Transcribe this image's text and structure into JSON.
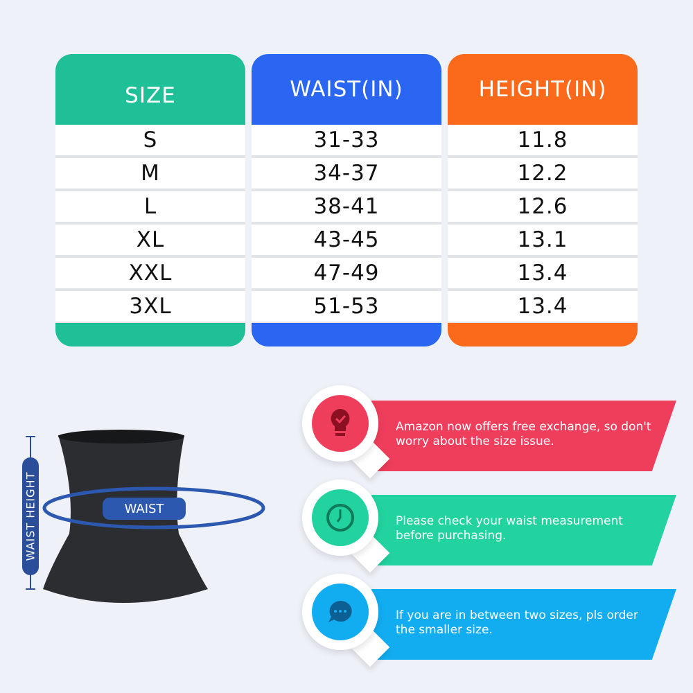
{
  "colors": {
    "size": "#1fbf98",
    "waist": "#2a66f2",
    "height": "#fa6a1a",
    "background": "#eef2f8"
  },
  "table": {
    "headers": [
      "SIZE",
      "WAIST(IN)",
      "HEIGHT(IN)"
    ],
    "rows": [
      [
        "S",
        "31-33",
        "11.8"
      ],
      [
        "M",
        "34-37",
        "12.2"
      ],
      [
        "L",
        "38-41",
        "12.6"
      ],
      [
        "XL",
        "43-45",
        "13.1"
      ],
      [
        "XXL",
        "47-49",
        "13.4"
      ],
      [
        "3XL",
        "51-53",
        "13.4"
      ]
    ]
  },
  "diagram": {
    "waist_label": "WAIST",
    "height_label": "WAIST HEIGHT"
  },
  "tips": [
    {
      "icon": "lightbulb-check-icon",
      "color": "#ef3e5c",
      "text": "Amazon now offers free exchange, so don't worry about the size issue."
    },
    {
      "icon": "clock-icon",
      "color": "#22d3a0",
      "text": "Please check your waist measurement before purchasing."
    },
    {
      "icon": "chat-bubble-icon",
      "color": "#12adf0",
      "text": "If you are in between two sizes, pls order the smaller size."
    }
  ]
}
